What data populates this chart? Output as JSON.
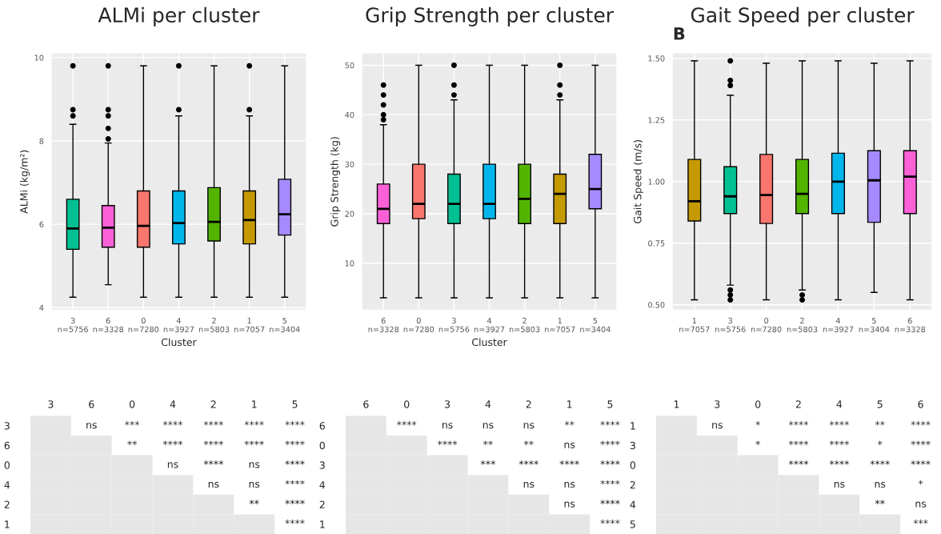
{
  "chart_data": [
    {
      "type": "box",
      "title": "ALMi per cluster",
      "xlabel": "Cluster",
      "ylabel": "ALMi (kg/m²)",
      "categories": [
        "3\nn=5756",
        "6\nn=3328",
        "0\nn=7280",
        "4\nn=3927",
        "2\nn=5803",
        "1\nn=7057",
        "5\nn=3404"
      ],
      "colors": [
        "#00c094",
        "#fb61d7",
        "#f8766d",
        "#00b6eb",
        "#53b400",
        "#c49a00",
        "#a58aff"
      ],
      "boxes": [
        {
          "low": 4.25,
          "q1": 5.4,
          "median": 5.9,
          "q3": 6.6,
          "high": 8.4,
          "outliers": [
            8.6,
            8.75,
            9.8
          ]
        },
        {
          "low": 4.55,
          "q1": 5.45,
          "median": 5.92,
          "q3": 6.45,
          "high": 7.95,
          "outliers": [
            8.05,
            8.3,
            8.6,
            8.75,
            9.8
          ]
        },
        {
          "low": 4.25,
          "q1": 5.45,
          "median": 5.96,
          "q3": 6.8,
          "high": 9.8
        },
        {
          "low": 4.25,
          "q1": 5.53,
          "median": 6.03,
          "q3": 6.8,
          "high": 8.6,
          "outliers": [
            8.75,
            9.8
          ]
        },
        {
          "low": 4.25,
          "q1": 5.6,
          "median": 6.06,
          "q3": 6.88,
          "high": 9.8
        },
        {
          "low": 4.25,
          "q1": 5.53,
          "median": 6.1,
          "q3": 6.8,
          "high": 8.6,
          "outliers": [
            8.75,
            9.8
          ]
        },
        {
          "low": 4.25,
          "q1": 5.74,
          "median": 6.24,
          "q3": 7.08,
          "high": 9.8
        }
      ],
      "ylim": [
        3.95,
        10.1
      ],
      "yticks": [
        4,
        6,
        8,
        10
      ],
      "grid": true
    },
    {
      "type": "box",
      "title": "Grip Strength per cluster",
      "xlabel": "Cluster",
      "ylabel": "Grip Strength (kg)",
      "categories": [
        "6\nn=3328",
        "0\nn=7280",
        "3\nn=5756",
        "4\nn=3927",
        "2\nn=5803",
        "1\nn=7057",
        "5\nn=3404"
      ],
      "colors": [
        "#fb61d7",
        "#f8766d",
        "#00c094",
        "#00b6eb",
        "#53b400",
        "#c49a00",
        "#a58aff"
      ],
      "boxes": [
        {
          "low": 3,
          "q1": 18,
          "median": 21,
          "q3": 26,
          "high": 38,
          "outliers": [
            39,
            40,
            42,
            44,
            46
          ]
        },
        {
          "low": 3,
          "q1": 19,
          "median": 22,
          "q3": 30,
          "high": 50
        },
        {
          "low": 3,
          "q1": 18,
          "median": 22,
          "q3": 28,
          "high": 43,
          "outliers": [
            44,
            46,
            50
          ]
        },
        {
          "low": 3,
          "q1": 19,
          "median": 22,
          "q3": 30,
          "high": 50
        },
        {
          "low": 3,
          "q1": 18,
          "median": 23,
          "q3": 30,
          "high": 50
        },
        {
          "low": 3,
          "q1": 18,
          "median": 24,
          "q3": 28,
          "high": 43,
          "outliers": [
            44,
            46,
            50
          ]
        },
        {
          "low": 3,
          "q1": 21,
          "median": 25,
          "q3": 32,
          "high": 50
        }
      ],
      "ylim": [
        0.6,
        52.4
      ],
      "yticks": [
        10,
        20,
        30,
        40,
        50
      ],
      "grid": true
    },
    {
      "type": "box",
      "title": "Gait Speed per cluster",
      "ylabel": "Gait Speed (m/s)",
      "annotations": [
        "B"
      ],
      "categories": [
        "1\nn=7057",
        "3\nn=5756",
        "0\nn=7280",
        "2\nn=5803",
        "4\nn=3927",
        "5\nn=3404",
        "6\nn=3328"
      ],
      "colors": [
        "#c49a00",
        "#00c094",
        "#f8766d",
        "#53b400",
        "#00b6eb",
        "#a58aff",
        "#fb61d7"
      ],
      "boxes": [
        {
          "low": 0.52,
          "q1": 0.84,
          "median": 0.92,
          "q3": 1.09,
          "high": 1.49
        },
        {
          "low": 0.58,
          "q1": 0.87,
          "median": 0.94,
          "q3": 1.06,
          "high": 1.35,
          "outliers": [
            0.52,
            0.54,
            0.56,
            1.39,
            1.41,
            1.49
          ]
        },
        {
          "low": 0.52,
          "q1": 0.83,
          "median": 0.945,
          "q3": 1.11,
          "high": 1.48
        },
        {
          "low": 0.56,
          "q1": 0.87,
          "median": 0.95,
          "q3": 1.09,
          "high": 1.49,
          "outliers": [
            0.52,
            0.54
          ]
        },
        {
          "low": 0.52,
          "q1": 0.87,
          "median": 1.0,
          "q3": 1.115,
          "high": 1.49
        },
        {
          "low": 0.55,
          "q1": 0.835,
          "median": 1.005,
          "q3": 1.125,
          "high": 1.48
        },
        {
          "low": 0.52,
          "q1": 0.87,
          "median": 1.02,
          "q3": 1.125,
          "high": 1.49
        }
      ],
      "ylim": [
        0.48,
        1.52
      ],
      "yticks": [
        {
          "value": 0.5,
          "label": "0.50"
        },
        {
          "value": 0.75,
          "label": "0.75"
        },
        {
          "value": 1.0,
          "label": "1.00"
        },
        {
          "value": 1.25,
          "label": "1.25"
        },
        {
          "value": 1.5,
          "label": "1.50"
        }
      ],
      "grid": true
    },
    {
      "type": "heatmap",
      "categories": [
        "3",
        "6",
        "0",
        "4",
        "2",
        "1",
        "5"
      ],
      "y_categories": [
        "3",
        "6",
        "0",
        "4",
        "2",
        "1"
      ],
      "cells": [
        [
          null,
          null,
          null,
          null,
          null,
          null,
          null
        ],
        [
          null,
          null,
          null,
          null,
          null,
          null,
          null
        ],
        [
          null,
          null,
          null,
          null,
          null,
          null,
          null
        ],
        [
          null,
          null,
          null,
          null,
          null,
          null,
          null
        ],
        [
          null,
          null,
          null,
          null,
          null,
          null,
          null
        ],
        [
          null,
          null,
          null,
          null,
          null,
          null,
          null
        ]
      ],
      "cell_labels": [
        [
          null,
          "ns",
          "***",
          "****",
          "****",
          "****",
          "****"
        ],
        [
          null,
          null,
          "**",
          "****",
          "****",
          "****",
          "****"
        ],
        [
          null,
          null,
          null,
          "ns",
          "****",
          "ns",
          "****"
        ],
        [
          null,
          null,
          null,
          null,
          "ns",
          "ns",
          "****"
        ],
        [
          null,
          null,
          null,
          null,
          null,
          "**",
          "****"
        ],
        [
          null,
          null,
          null,
          null,
          null,
          null,
          "****"
        ]
      ]
    },
    {
      "type": "heatmap",
      "categories": [
        "6",
        "0",
        "3",
        "4",
        "2",
        "1",
        "5"
      ],
      "y_categories": [
        "6",
        "0",
        "3",
        "4",
        "2",
        "1"
      ],
      "cells": [
        [
          null,
          null,
          null,
          null,
          null,
          null,
          null
        ],
        [
          null,
          null,
          null,
          null,
          null,
          null,
          null
        ],
        [
          null,
          null,
          null,
          null,
          null,
          null,
          null
        ],
        [
          null,
          null,
          null,
          null,
          null,
          null,
          null
        ],
        [
          null,
          null,
          null,
          null,
          null,
          null,
          null
        ],
        [
          null,
          null,
          null,
          null,
          null,
          null,
          null
        ]
      ],
      "cell_labels": [
        [
          null,
          "****",
          "ns",
          "ns",
          "ns",
          "**",
          "****"
        ],
        [
          null,
          null,
          "****",
          "**",
          "**",
          "ns",
          "****"
        ],
        [
          null,
          null,
          null,
          "***",
          "****",
          "****",
          "****"
        ],
        [
          null,
          null,
          null,
          null,
          "ns",
          "ns",
          "****"
        ],
        [
          null,
          null,
          null,
          null,
          null,
          "ns",
          "****"
        ],
        [
          null,
          null,
          null,
          null,
          null,
          null,
          "****"
        ]
      ]
    },
    {
      "type": "heatmap",
      "categories": [
        "1",
        "3",
        "0",
        "2",
        "4",
        "5",
        "6"
      ],
      "y_categories": [
        "1",
        "3",
        "0",
        "2",
        "4",
        "5"
      ],
      "cells": [
        [
          null,
          null,
          null,
          null,
          null,
          null,
          null
        ],
        [
          null,
          null,
          null,
          null,
          null,
          null,
          null
        ],
        [
          null,
          null,
          null,
          null,
          null,
          null,
          null
        ],
        [
          null,
          null,
          null,
          null,
          null,
          null,
          null
        ],
        [
          null,
          null,
          null,
          null,
          null,
          null,
          null
        ],
        [
          null,
          null,
          null,
          null,
          null,
          null,
          null
        ]
      ],
      "cell_labels": [
        [
          null,
          "ns",
          "*",
          "****",
          "****",
          "**",
          "****"
        ],
        [
          null,
          null,
          "*",
          "****",
          "****",
          "*",
          "****"
        ],
        [
          null,
          null,
          null,
          "****",
          "****",
          "****",
          "****"
        ],
        [
          null,
          null,
          null,
          null,
          "ns",
          "ns",
          "*"
        ],
        [
          null,
          null,
          null,
          null,
          null,
          "**",
          "ns"
        ],
        [
          null,
          null,
          null,
          null,
          null,
          null,
          "***"
        ]
      ]
    }
  ]
}
